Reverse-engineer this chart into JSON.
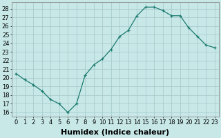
{
  "x": [
    0,
    1,
    2,
    3,
    4,
    5,
    6,
    7,
    8,
    9,
    10,
    11,
    12,
    13,
    14,
    15,
    16,
    17,
    18,
    19,
    20,
    21,
    22,
    23
  ],
  "y": [
    20.5,
    19.8,
    19.2,
    18.5,
    17.5,
    17.0,
    16.0,
    17.0,
    20.3,
    21.5,
    22.2,
    23.3,
    24.8,
    25.5,
    27.2,
    28.2,
    28.2,
    27.8,
    27.2,
    27.2,
    25.8,
    24.8,
    23.8,
    23.5
  ],
  "line_color": "#1a7a6e",
  "marker": "+",
  "bg_color": "#c8e8e8",
  "grid_color": "#a8cccc",
  "xlabel": "Humidex (Indice chaleur)",
  "xlim": [
    -0.5,
    23.5
  ],
  "ylim": [
    15.5,
    28.8
  ],
  "yticks": [
    16,
    17,
    18,
    19,
    20,
    21,
    22,
    23,
    24,
    25,
    26,
    27,
    28
  ],
  "xticks": [
    0,
    1,
    2,
    3,
    4,
    5,
    6,
    7,
    8,
    9,
    10,
    11,
    12,
    13,
    14,
    15,
    16,
    17,
    18,
    19,
    20,
    21,
    22,
    23
  ],
  "tick_fontsize": 6,
  "xlabel_fontsize": 8
}
